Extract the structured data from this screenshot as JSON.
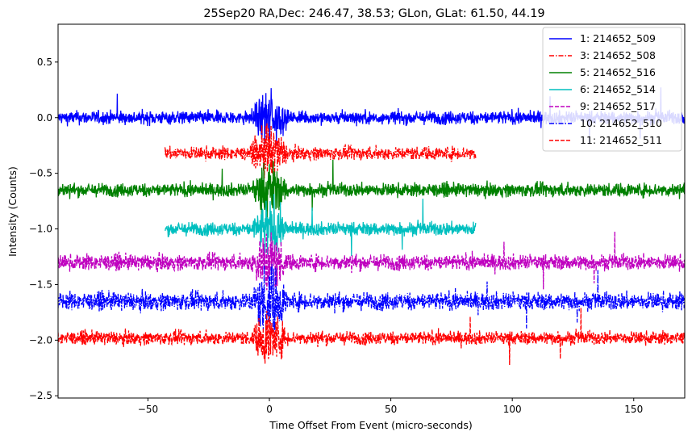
{
  "chart_data": {
    "type": "line",
    "title": "25Sep20 RA,Dec:  246.47,  38.53; GLon, GLat:   61.50,  44.19",
    "xlabel": "Time Offset From Event (micro-seconds)",
    "ylabel": "Intensity (Counts)",
    "xlim": [
      -87,
      171
    ],
    "ylim": [
      -2.52,
      0.84
    ],
    "xticks": [
      -50,
      0,
      50,
      100,
      150
    ],
    "xtick_labels": [
      "−50",
      "0",
      "50",
      "100",
      "150"
    ],
    "yticks": [
      0.5,
      0.0,
      -0.5,
      -1.0,
      -1.5,
      -2.0,
      -2.5
    ],
    "ytick_labels": [
      "0.5",
      "0.0",
      "−0.5",
      "−1.0",
      "−1.5",
      "−2.0",
      "−2.5"
    ],
    "grid": false,
    "legend_position": "top-right",
    "event_time": 0,
    "series": [
      {
        "name": "1: 214652_509",
        "color": "#0000ff",
        "style": "solid",
        "x_range": [
          -87,
          171
        ],
        "baseline": 0.0,
        "noise": 0.03
      },
      {
        "name": "3: 214652_508",
        "color": "#ff0000",
        "style": "dashdot",
        "x_range": [
          -43,
          85
        ],
        "baseline": -0.32,
        "noise": 0.03
      },
      {
        "name": "5: 214652_516",
        "color": "#008000",
        "style": "solid",
        "x_range": [
          -87,
          171
        ],
        "baseline": -0.65,
        "noise": 0.03
      },
      {
        "name": "6: 214652_514",
        "color": "#00bfbf",
        "style": "solid",
        "x_range": [
          -43,
          85
        ],
        "baseline": -1.0,
        "noise": 0.03
      },
      {
        "name": "9: 214652_517",
        "color": "#bf00bf",
        "style": "dashed",
        "x_range": [
          -87,
          171
        ],
        "baseline": -1.3,
        "noise": 0.035
      },
      {
        "name": "10: 214652_510",
        "color": "#0000ff",
        "style": "dashdot",
        "x_range": [
          -87,
          171
        ],
        "baseline": -1.65,
        "noise": 0.04
      },
      {
        "name": "11: 214652_511",
        "color": "#ff0000",
        "style": "dashed",
        "x_range": [
          -87,
          171
        ],
        "baseline": -1.98,
        "noise": 0.03
      }
    ]
  }
}
